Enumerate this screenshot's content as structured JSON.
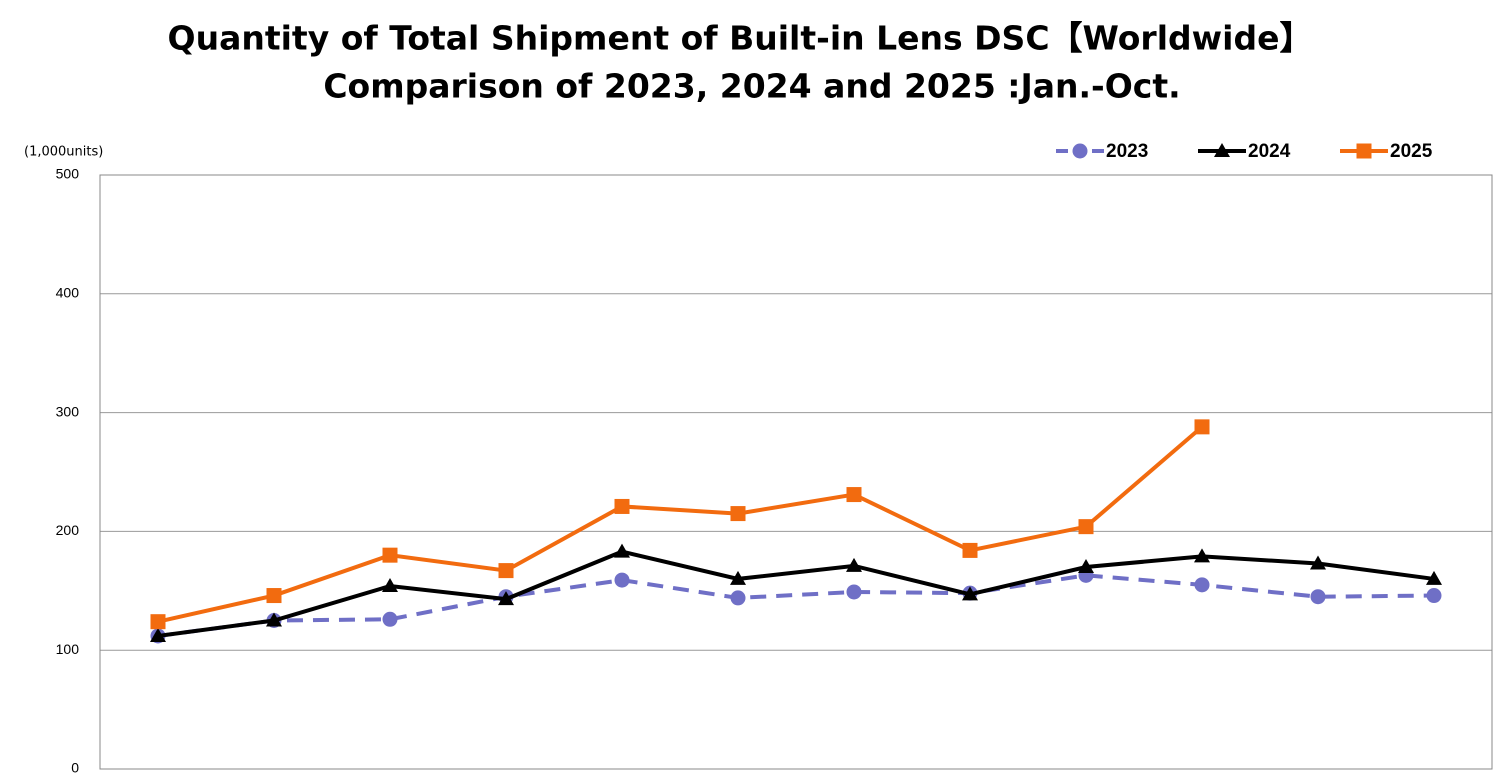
{
  "chart_data": {
    "type": "line",
    "title": "Quantity of Total Shipment of Built-in Lens DSC【Worldwide】",
    "subtitle": "Comparison of 2023, 2024 and 2025 :Jan.-Oct.",
    "y_label": "(1,000units)",
    "categories": [
      null,
      null,
      null,
      null,
      null,
      null,
      null,
      null,
      null,
      null,
      null,
      null
    ],
    "series": [
      {
        "name": "2023",
        "color": "#6f6fc6",
        "marker": "circle",
        "dash": true,
        "values": [
          112,
          125,
          126,
          145,
          159,
          144,
          149,
          148,
          163,
          155,
          145,
          146
        ]
      },
      {
        "name": "2024",
        "color": "#000000",
        "marker": "triangle",
        "dash": false,
        "values": [
          112,
          125,
          154,
          143,
          183,
          160,
          171,
          147,
          170,
          179,
          173,
          160
        ]
      },
      {
        "name": "2025",
        "color": "#f26b0f",
        "marker": "square",
        "dash": false,
        "values": [
          124,
          146,
          180,
          167,
          221,
          215,
          231,
          184,
          204,
          288,
          null,
          null
        ]
      }
    ],
    "ylim": [
      0,
      500
    ],
    "yticks": [
      0,
      100,
      200,
      300,
      400,
      500
    ],
    "grid": true,
    "legend": "top-right"
  }
}
